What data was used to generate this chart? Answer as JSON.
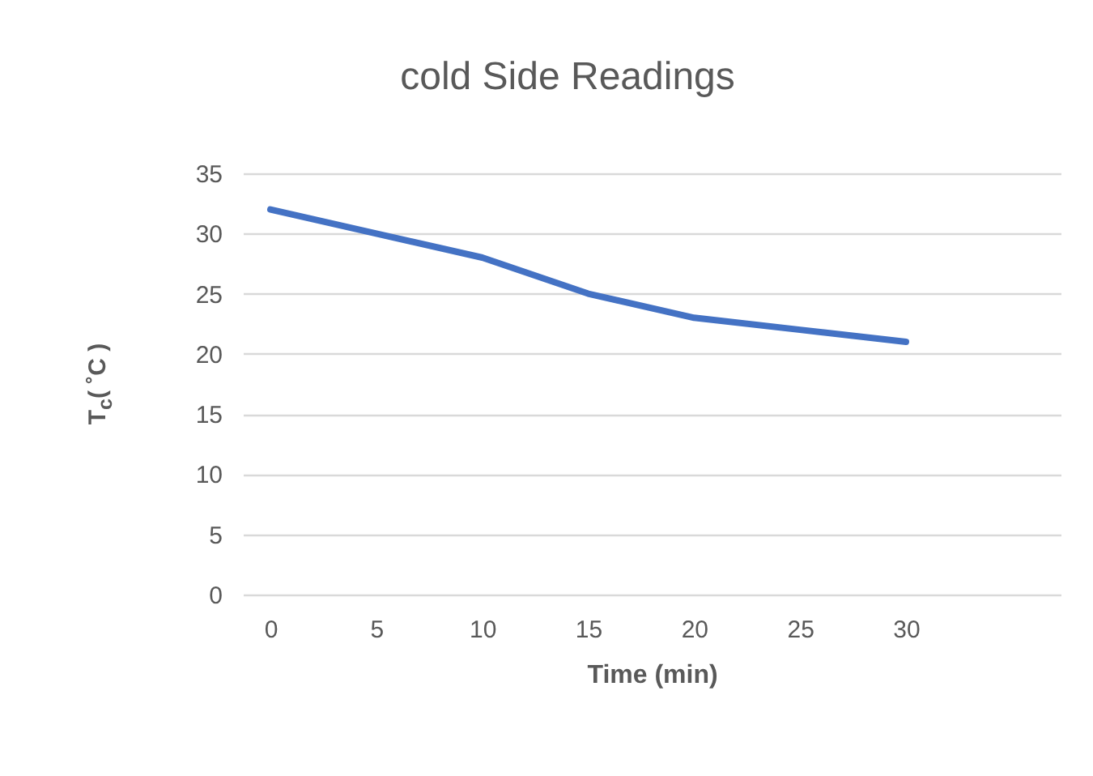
{
  "chart_data": {
    "type": "line",
    "title": "cold Side Readings",
    "xlabel": "Time (min)",
    "ylabel": "T$_{c}$( ˚C )",
    "x": [
      0,
      5,
      10,
      15,
      20,
      25,
      30
    ],
    "series": [
      {
        "color": "#4472c4",
        "values": [
          32,
          30,
          28,
          25,
          23,
          22,
          21
        ]
      }
    ],
    "xlim": [
      -1.3,
      37.3
    ],
    "xticks": [
      0,
      5,
      10,
      15,
      20,
      25,
      30
    ],
    "ylim": [
      0,
      35
    ],
    "yticks": [
      0,
      5,
      10,
      15,
      20,
      25,
      30,
      35
    ],
    "grid": "y",
    "marker": "none",
    "line_style": "solid"
  }
}
